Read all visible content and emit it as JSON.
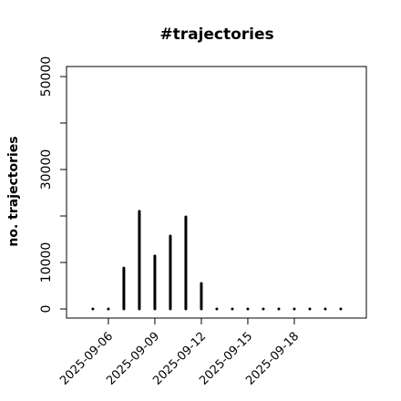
{
  "chart_data": {
    "type": "bar",
    "title": "#trajectories",
    "y_label": "no. trajectories",
    "x": [
      "2025-09-05",
      "2025-09-06",
      "2025-09-07",
      "2025-09-08",
      "2025-09-09",
      "2025-09-10",
      "2025-09-11",
      "2025-09-12",
      "2025-09-13",
      "2025-09-14",
      "2025-09-15",
      "2025-09-16",
      "2025-09-17",
      "2025-09-18",
      "2025-09-19",
      "2025-09-20",
      "2025-09-21"
    ],
    "values": [
      0,
      0,
      8800,
      21000,
      11400,
      15700,
      19800,
      5500,
      0,
      0,
      0,
      0,
      0,
      0,
      0,
      0,
      0
    ],
    "color": "#000000",
    "xlim": [
      "2025-09-03T07:12",
      "2025-09-22T15:36"
    ],
    "xticks": [
      "2025-09-06",
      "2025-09-09",
      "2025-09-12",
      "2025-09-15",
      "2025-09-18"
    ],
    "ylim": [
      -1960,
      52160
    ],
    "yticks": [
      0,
      10000,
      30000,
      50000
    ],
    "yticks_unlabeled": [
      20000,
      40000
    ]
  }
}
